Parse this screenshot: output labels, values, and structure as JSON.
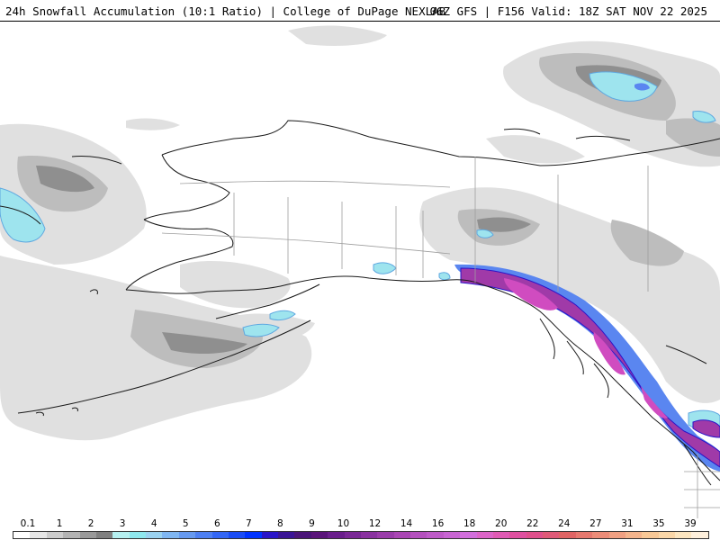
{
  "header": {
    "title": "24h Snowfall Accumulation (10:1 Ratio) | College of DuPage NEXLAB",
    "run_info": "06Z GFS | F156 Valid: 18Z SAT NOV 22 2025"
  },
  "legend": {
    "labels": [
      "0.1",
      "1",
      "2",
      "3",
      "4",
      "5",
      "6",
      "7",
      "8",
      "9",
      "10",
      "12",
      "14",
      "16",
      "18",
      "20",
      "22",
      "24",
      "27",
      "31",
      "35",
      "39"
    ],
    "colors": [
      "#ffffff",
      "#e6e6e6",
      "#cccccc",
      "#b3b3b3",
      "#999999",
      "#808080",
      "#b5f0f0",
      "#8ee8ee",
      "#9ad2f0",
      "#7fb6f2",
      "#6699f0",
      "#4d7ff2",
      "#3366f5",
      "#1a4cf5",
      "#0033ff",
      "#2a14c8",
      "#3a1496",
      "#4a1478",
      "#5a147a",
      "#6a1e8c",
      "#7a2896",
      "#8a32a0",
      "#9a3caa",
      "#aa46b4",
      "#b450be",
      "#be5ac8",
      "#c864d2",
      "#d26edc",
      "#dc64c8",
      "#e05ab4",
      "#e050a0",
      "#e0508c",
      "#e05a78",
      "#e06464",
      "#e6786e",
      "#ec8c78",
      "#f0a082",
      "#f4b48c",
      "#f8c896",
      "#fbd7a8",
      "#fde6c0",
      "#fff0dc"
    ]
  },
  "map": {
    "region": "Alaska and western Canada",
    "heavy_snow_color": "#a030a0"
  }
}
